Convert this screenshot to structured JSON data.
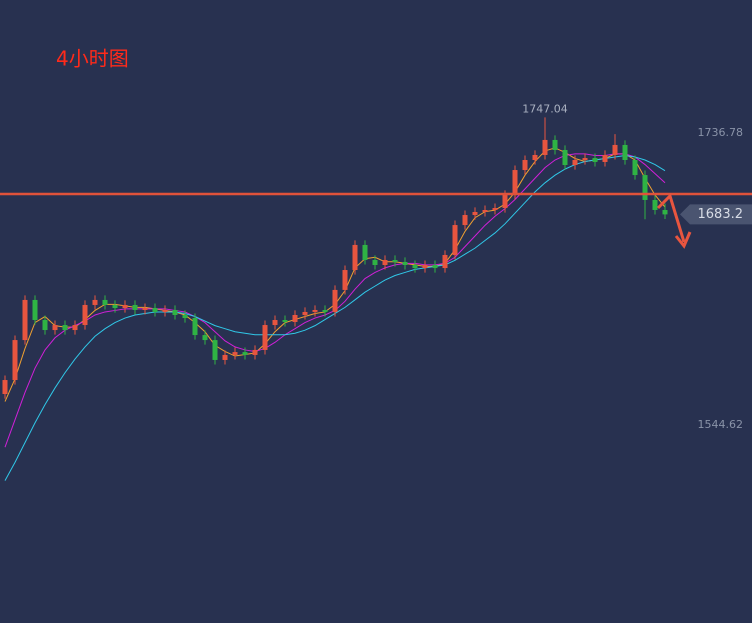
{
  "chart_data": {
    "type": "candlestick",
    "title": "4小时图",
    "ohlc": [
      [
        1565.0,
        1577.2,
        1562.0,
        1574.2
      ],
      [
        1574.2,
        1603.5,
        1571.2,
        1600.5
      ],
      [
        1600.5,
        1629.9,
        1597.5,
        1626.9
      ],
      [
        1626.9,
        1629.9,
        1610.7,
        1613.7
      ],
      [
        1613.7,
        1616.7,
        1604.1,
        1607.1
      ],
      [
        1607.1,
        1613.4,
        1604.1,
        1610.4
      ],
      [
        1610.4,
        1613.4,
        1604.1,
        1607.1
      ],
      [
        1607.1,
        1613.4,
        1604.1,
        1610.4
      ],
      [
        1610.4,
        1626.6,
        1607.4,
        1623.6
      ],
      [
        1623.6,
        1629.9,
        1620.6,
        1626.9
      ],
      [
        1626.9,
        1629.9,
        1620.6,
        1623.6
      ],
      [
        1623.6,
        1626.6,
        1618.6,
        1621.6
      ],
      [
        1621.6,
        1626.6,
        1618.6,
        1623.6
      ],
      [
        1623.6,
        1626.6,
        1617.3,
        1620.3
      ],
      [
        1620.3,
        1624.6,
        1617.3,
        1621.6
      ],
      [
        1621.6,
        1624.6,
        1616.0,
        1619.0
      ],
      [
        1619.0,
        1623.3,
        1616.0,
        1620.3
      ],
      [
        1620.3,
        1623.3,
        1614.0,
        1617.0
      ],
      [
        1617.0,
        1620.0,
        1612.0,
        1615.0
      ],
      [
        1615.0,
        1618.0,
        1600.8,
        1603.8
      ],
      [
        1603.8,
        1606.8,
        1597.5,
        1600.5
      ],
      [
        1600.5,
        1603.5,
        1584.4,
        1587.4
      ],
      [
        1587.4,
        1593.7,
        1584.4,
        1590.7
      ],
      [
        1590.7,
        1595.6,
        1587.7,
        1592.6
      ],
      [
        1592.6,
        1595.6,
        1587.7,
        1590.7
      ],
      [
        1590.7,
        1597.0,
        1587.7,
        1594.0
      ],
      [
        1594.0,
        1613.4,
        1591.0,
        1610.4
      ],
      [
        1610.4,
        1616.7,
        1607.4,
        1613.7
      ],
      [
        1613.7,
        1616.7,
        1609.4,
        1612.4
      ],
      [
        1612.4,
        1620.0,
        1609.4,
        1617.0
      ],
      [
        1617.0,
        1622.0,
        1614.0,
        1619.0
      ],
      [
        1619.0,
        1623.3,
        1616.0,
        1620.3
      ],
      [
        1620.3,
        1623.3,
        1616.0,
        1619.0
      ],
      [
        1619.0,
        1636.5,
        1616.0,
        1633.5
      ],
      [
        1633.5,
        1649.6,
        1630.5,
        1646.6
      ],
      [
        1646.6,
        1666.1,
        1643.6,
        1663.1
      ],
      [
        1663.1,
        1666.1,
        1650.2,
        1653.2
      ],
      [
        1653.2,
        1656.2,
        1646.9,
        1649.9
      ],
      [
        1649.9,
        1656.2,
        1646.9,
        1653.2
      ],
      [
        1653.2,
        1656.2,
        1648.9,
        1651.9
      ],
      [
        1651.9,
        1654.9,
        1646.9,
        1649.9
      ],
      [
        1649.9,
        1652.9,
        1644.9,
        1647.9
      ],
      [
        1647.9,
        1652.9,
        1644.9,
        1649.9
      ],
      [
        1649.9,
        1652.9,
        1644.9,
        1647.9
      ],
      [
        1647.9,
        1659.5,
        1644.9,
        1656.5
      ],
      [
        1656.5,
        1679.2,
        1653.5,
        1676.2
      ],
      [
        1676.2,
        1685.8,
        1673.2,
        1682.8
      ],
      [
        1682.8,
        1687.8,
        1679.8,
        1684.8
      ],
      [
        1684.8,
        1689.1,
        1681.8,
        1686.1
      ],
      [
        1686.1,
        1690.4,
        1683.1,
        1687.4
      ],
      [
        1687.4,
        1699.0,
        1684.4,
        1696.0
      ],
      [
        1696.0,
        1715.4,
        1693.0,
        1712.4
      ],
      [
        1712.4,
        1722.0,
        1709.4,
        1719.0
      ],
      [
        1719.0,
        1725.3,
        1716.0,
        1722.3
      ],
      [
        1722.3,
        1747.04,
        1719.3,
        1732.2
      ],
      [
        1732.2,
        1735.2,
        1722.6,
        1725.6
      ],
      [
        1725.6,
        1728.6,
        1712.7,
        1715.7
      ],
      [
        1715.7,
        1722.0,
        1712.7,
        1719.0
      ],
      [
        1719.0,
        1723.3,
        1716.0,
        1720.3
      ],
      [
        1720.3,
        1723.3,
        1714.7,
        1717.7
      ],
      [
        1717.7,
        1725.3,
        1714.7,
        1722.3
      ],
      [
        1722.3,
        1736.0,
        1719.3,
        1728.9
      ],
      [
        1728.9,
        1731.9,
        1716.0,
        1719.0
      ],
      [
        1719.0,
        1722.0,
        1706.1,
        1709.1
      ],
      [
        1709.1,
        1712.1,
        1680.0,
        1692.7
      ],
      [
        1692.7,
        1695.7,
        1683.1,
        1686.1
      ],
      [
        1686.1,
        1690.4,
        1680.2,
        1683.2
      ]
    ],
    "up_color": "#e8553f",
    "down_color": "#2fb344",
    "series": [
      {
        "color": "#f0a030",
        "values": [
          1560,
          1575,
          1595,
          1612,
          1616,
          1610,
          1609,
          1609,
          1614,
          1620,
          1624,
          1624,
          1623,
          1622,
          1622,
          1621,
          1620,
          1619,
          1617,
          1612,
          1606,
          1597,
          1593,
          1590,
          1591,
          1592,
          1598,
          1606,
          1612,
          1614,
          1616,
          1618,
          1619,
          1624,
          1633,
          1648,
          1654,
          1655,
          1652,
          1652,
          1651,
          1650,
          1649,
          1649,
          1651,
          1660,
          1672,
          1681,
          1685,
          1686,
          1690,
          1698,
          1709,
          1718,
          1725,
          1727,
          1724,
          1720,
          1718,
          1719,
          1720,
          1723,
          1723,
          1719,
          1707,
          1696,
          1688
        ]
      },
      {
        "color": "#d020d8",
        "values": [
          1530,
          1548,
          1566,
          1582,
          1594,
          1602,
          1607,
          1610,
          1613,
          1617,
          1619,
          1620,
          1621,
          1621,
          1621,
          1621,
          1621,
          1620,
          1619,
          1616,
          1612,
          1606,
          1600,
          1596,
          1594,
          1593,
          1595,
          1599,
          1604,
          1608,
          1612,
          1615,
          1617,
          1620,
          1626,
          1634,
          1641,
          1645,
          1648,
          1650,
          1651,
          1651,
          1650,
          1650,
          1651,
          1655,
          1662,
          1669,
          1676,
          1682,
          1687,
          1693,
          1700,
          1707,
          1714,
          1719,
          1722,
          1723,
          1723,
          1722,
          1722,
          1723,
          1723,
          1721,
          1716,
          1710,
          1704
        ]
      },
      {
        "color": "#30c8e8",
        "values": [
          1508,
          1520,
          1533,
          1546,
          1558,
          1569,
          1579,
          1588,
          1596,
          1603,
          1608,
          1612,
          1615,
          1617,
          1618,
          1619,
          1619,
          1619,
          1618,
          1616,
          1613,
          1610,
          1608,
          1606,
          1605,
          1604,
          1604,
          1604,
          1604,
          1605,
          1607,
          1610,
          1614,
          1618,
          1622,
          1627,
          1632,
          1636,
          1640,
          1643,
          1645,
          1647,
          1648,
          1649,
          1650,
          1653,
          1657,
          1661,
          1666,
          1671,
          1677,
          1684,
          1691,
          1698,
          1704,
          1709,
          1713,
          1716,
          1718,
          1719,
          1720,
          1721,
          1722,
          1721,
          1719,
          1716,
          1712
        ]
      }
    ],
    "hline": 1696.6,
    "hline_color": "#e0523a",
    "ylim": [
      1414.3,
      1824.3
    ],
    "yticks": [
      1736.78,
      1544.62
    ]
  }
}
